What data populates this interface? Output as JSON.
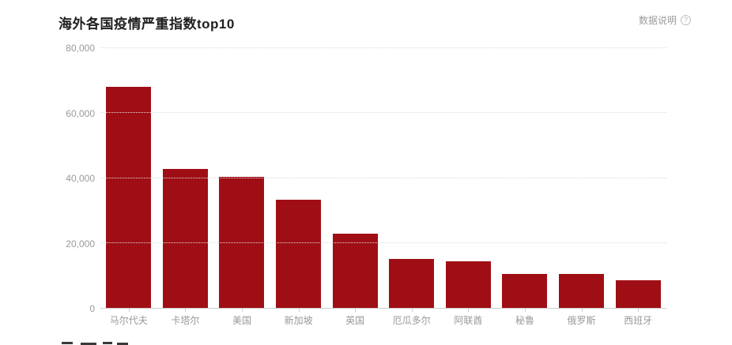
{
  "header": {
    "title": "海外各国疫情严重指数top10",
    "data_note_label": "数据说明",
    "help_icon_glyph": "?"
  },
  "chart_data": {
    "type": "bar",
    "title": "海外各国疫情严重指数top10",
    "categories": [
      "马尔代夫",
      "卡塔尔",
      "美国",
      "新加坡",
      "英国",
      "厄瓜多尔",
      "阿联酋",
      "秘鲁",
      "俄罗斯",
      "西班牙"
    ],
    "values": [
      68000,
      42700,
      40400,
      33300,
      22800,
      15100,
      14400,
      10500,
      10400,
      8600
    ],
    "xlabel": "",
    "ylabel": "",
    "ylim": [
      0,
      80000
    ],
    "yticks": [
      0,
      20000,
      40000,
      60000,
      80000
    ],
    "ytick_labels": [
      "0",
      "20,000",
      "40,000",
      "60,000",
      "80,000"
    ],
    "grid": "horizontal-dotted",
    "legend": "none",
    "bar_color": "#a00e15"
  },
  "colors": {
    "bar": "#a00e15",
    "title_text": "#1f1f1f",
    "axis_label": "#999999",
    "gridline": "#dddddd",
    "axis_line": "#cccccc",
    "note_text": "#9b9b9b",
    "background": "#ffffff"
  }
}
